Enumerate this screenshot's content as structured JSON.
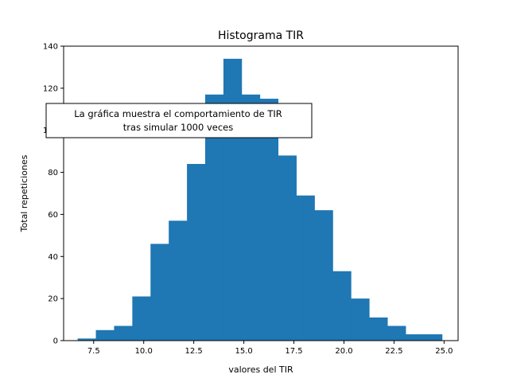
{
  "chart_data": {
    "type": "bar",
    "title": "Histograma TIR",
    "xlabel": "valores del TIR",
    "ylabel": "Total repeticiones",
    "xlim": [
      6.0,
      25.7
    ],
    "ylim": [
      0,
      140
    ],
    "xticks": [
      7.5,
      10.0,
      12.5,
      15.0,
      17.5,
      20.0,
      22.5,
      25.0
    ],
    "xtick_labels": [
      "7.5",
      "10.0",
      "12.5",
      "15.0",
      "17.5",
      "20.0",
      "22.5",
      "25.0"
    ],
    "yticks": [
      0,
      20,
      40,
      60,
      80,
      100,
      120,
      140
    ],
    "ytick_labels": [
      "0",
      "20",
      "40",
      "60",
      "80",
      "100",
      "120",
      "140"
    ],
    "grid": false,
    "color": "#1f77b4",
    "bins": [
      {
        "x0": 6.7,
        "x1": 7.61,
        "count": 1
      },
      {
        "x0": 7.61,
        "x1": 8.52,
        "count": 5
      },
      {
        "x0": 8.52,
        "x1": 9.43,
        "count": 7
      },
      {
        "x0": 9.43,
        "x1": 10.34,
        "count": 21
      },
      {
        "x0": 10.34,
        "x1": 11.25,
        "count": 46
      },
      {
        "x0": 11.25,
        "x1": 12.16,
        "count": 57
      },
      {
        "x0": 12.16,
        "x1": 13.07,
        "count": 84
      },
      {
        "x0": 13.07,
        "x1": 13.98,
        "count": 117
      },
      {
        "x0": 13.98,
        "x1": 14.89,
        "count": 134
      },
      {
        "x0": 14.89,
        "x1": 15.8,
        "count": 117
      },
      {
        "x0": 15.8,
        "x1": 16.71,
        "count": 115
      },
      {
        "x0": 16.71,
        "x1": 17.62,
        "count": 88
      },
      {
        "x0": 17.62,
        "x1": 18.53,
        "count": 69
      },
      {
        "x0": 18.53,
        "x1": 19.44,
        "count": 62
      },
      {
        "x0": 19.44,
        "x1": 20.35,
        "count": 33
      },
      {
        "x0": 20.35,
        "x1": 21.26,
        "count": 20
      },
      {
        "x0": 21.26,
        "x1": 22.17,
        "count": 11
      },
      {
        "x0": 22.17,
        "x1": 23.08,
        "count": 7
      },
      {
        "x0": 23.08,
        "x1": 23.99,
        "count": 3
      },
      {
        "x0": 23.99,
        "x1": 24.9,
        "count": 3
      }
    ],
    "annotation": {
      "lines": [
        "La gráfica muestra el comportamiento de TIR",
        "tras simular 1000 veces"
      ]
    }
  }
}
